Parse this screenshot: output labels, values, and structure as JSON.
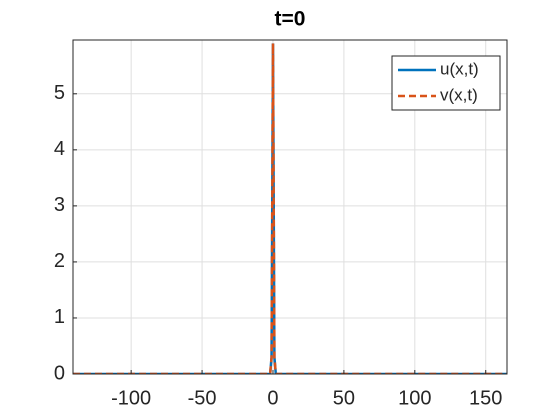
{
  "chart_data": {
    "type": "line",
    "title": "t=0",
    "x": [
      -141,
      -2,
      -1,
      0,
      1,
      2,
      165
    ],
    "series": [
      {
        "name": "u(x,t)",
        "color": "#0072bd",
        "dash": false,
        "values": [
          0,
          0,
          0.3,
          5.9,
          0.3,
          0,
          0
        ]
      },
      {
        "name": "v(x,t)",
        "color": "#d95319",
        "dash": true,
        "values": [
          0,
          0,
          0.3,
          5.9,
          0.3,
          0,
          0
        ]
      }
    ],
    "xlim": [
      -141,
      165
    ],
    "ylim": [
      0,
      5.96
    ],
    "xticks": [
      -100,
      -50,
      0,
      50,
      100,
      150
    ],
    "yticks": [
      0,
      1,
      2,
      3,
      4,
      5
    ],
    "grid": true,
    "legend": "northeast"
  }
}
